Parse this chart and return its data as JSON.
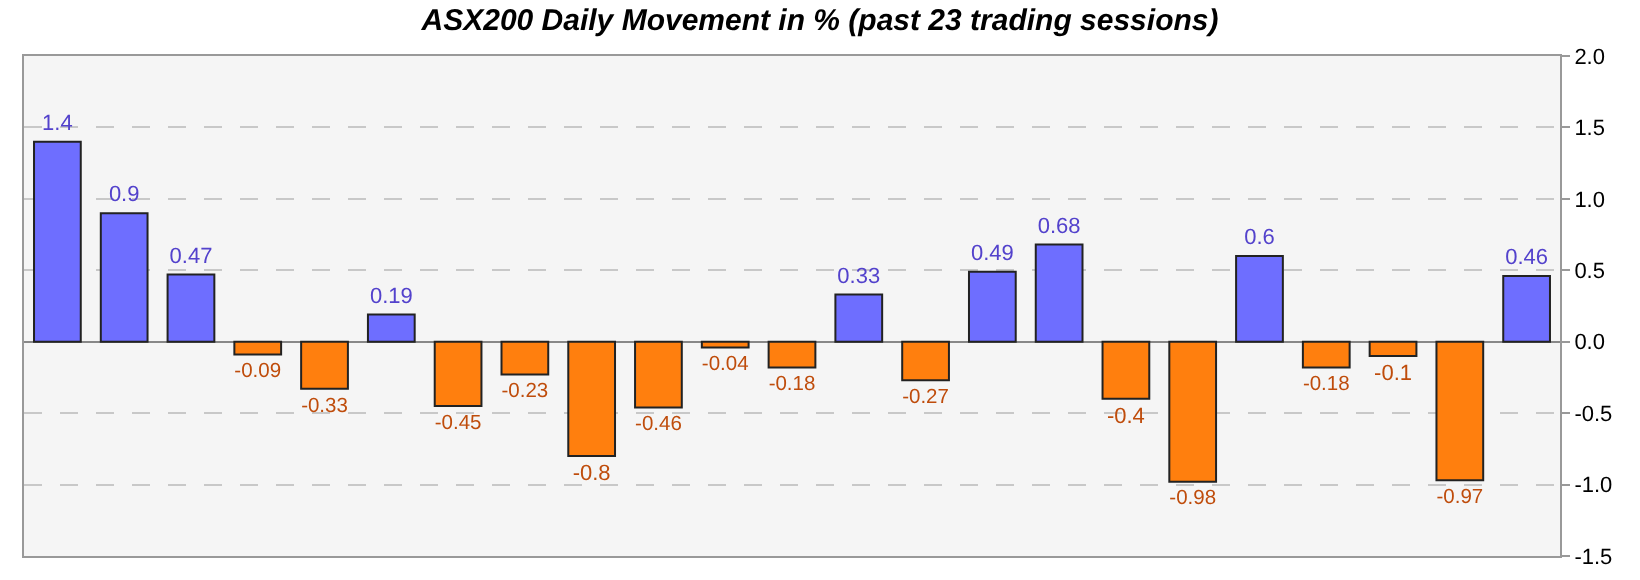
{
  "chart_data": {
    "type": "bar",
    "title": "ASX200 Daily Movement in % (past 23 trading sessions)",
    "categories": [
      null,
      null,
      null,
      null,
      null,
      null,
      null,
      null,
      null,
      null,
      null,
      null,
      null,
      null,
      null,
      null,
      null,
      null,
      null,
      null,
      null,
      null,
      null
    ],
    "values": [
      1.4,
      0.9,
      0.47,
      -0.09,
      -0.33,
      0.19,
      -0.45,
      -0.23,
      -0.8,
      -0.46,
      -0.04,
      -0.18,
      0.33,
      -0.27,
      0.49,
      0.68,
      -0.4,
      -0.98,
      0.6,
      -0.18,
      -0.1,
      -0.97,
      0.46
    ],
    "colors": [
      "#6e6eff",
      "#6e6eff",
      "#6e6eff",
      "#ff7f0e",
      "#ff7f0e",
      "#6e6eff",
      "#ff7f0e",
      "#ff7f0e",
      "#ff7f0e",
      "#ff7f0e",
      "#ff7f0e",
      "#ff7f0e",
      "#6e6eff",
      "#ff7f0e",
      "#6e6eff",
      "#6e6eff",
      "#ff7f0e",
      "#ff7f0e",
      "#6e6eff",
      "#ff7f0e",
      "#ff7f0e",
      "#ff7f0e",
      "#6e6eff"
    ],
    "ylim": [
      -1.5,
      2.0
    ],
    "yticks": [
      {
        "value": 2.0,
        "label": "2.0"
      },
      {
        "value": 1.5,
        "label": "1.5"
      },
      {
        "value": 1.0,
        "label": "1.0"
      },
      {
        "value": 0.5,
        "label": "0.5"
      },
      {
        "value": 0,
        "label": "0.0"
      },
      {
        "value": -0.5,
        "label": "-0.5"
      },
      {
        "value": -1.0,
        "label": "-1.0"
      },
      {
        "value": -1.5,
        "label": "-1.5"
      }
    ],
    "grid": "y",
    "data_labels": true,
    "tick_labels": "y"
  }
}
